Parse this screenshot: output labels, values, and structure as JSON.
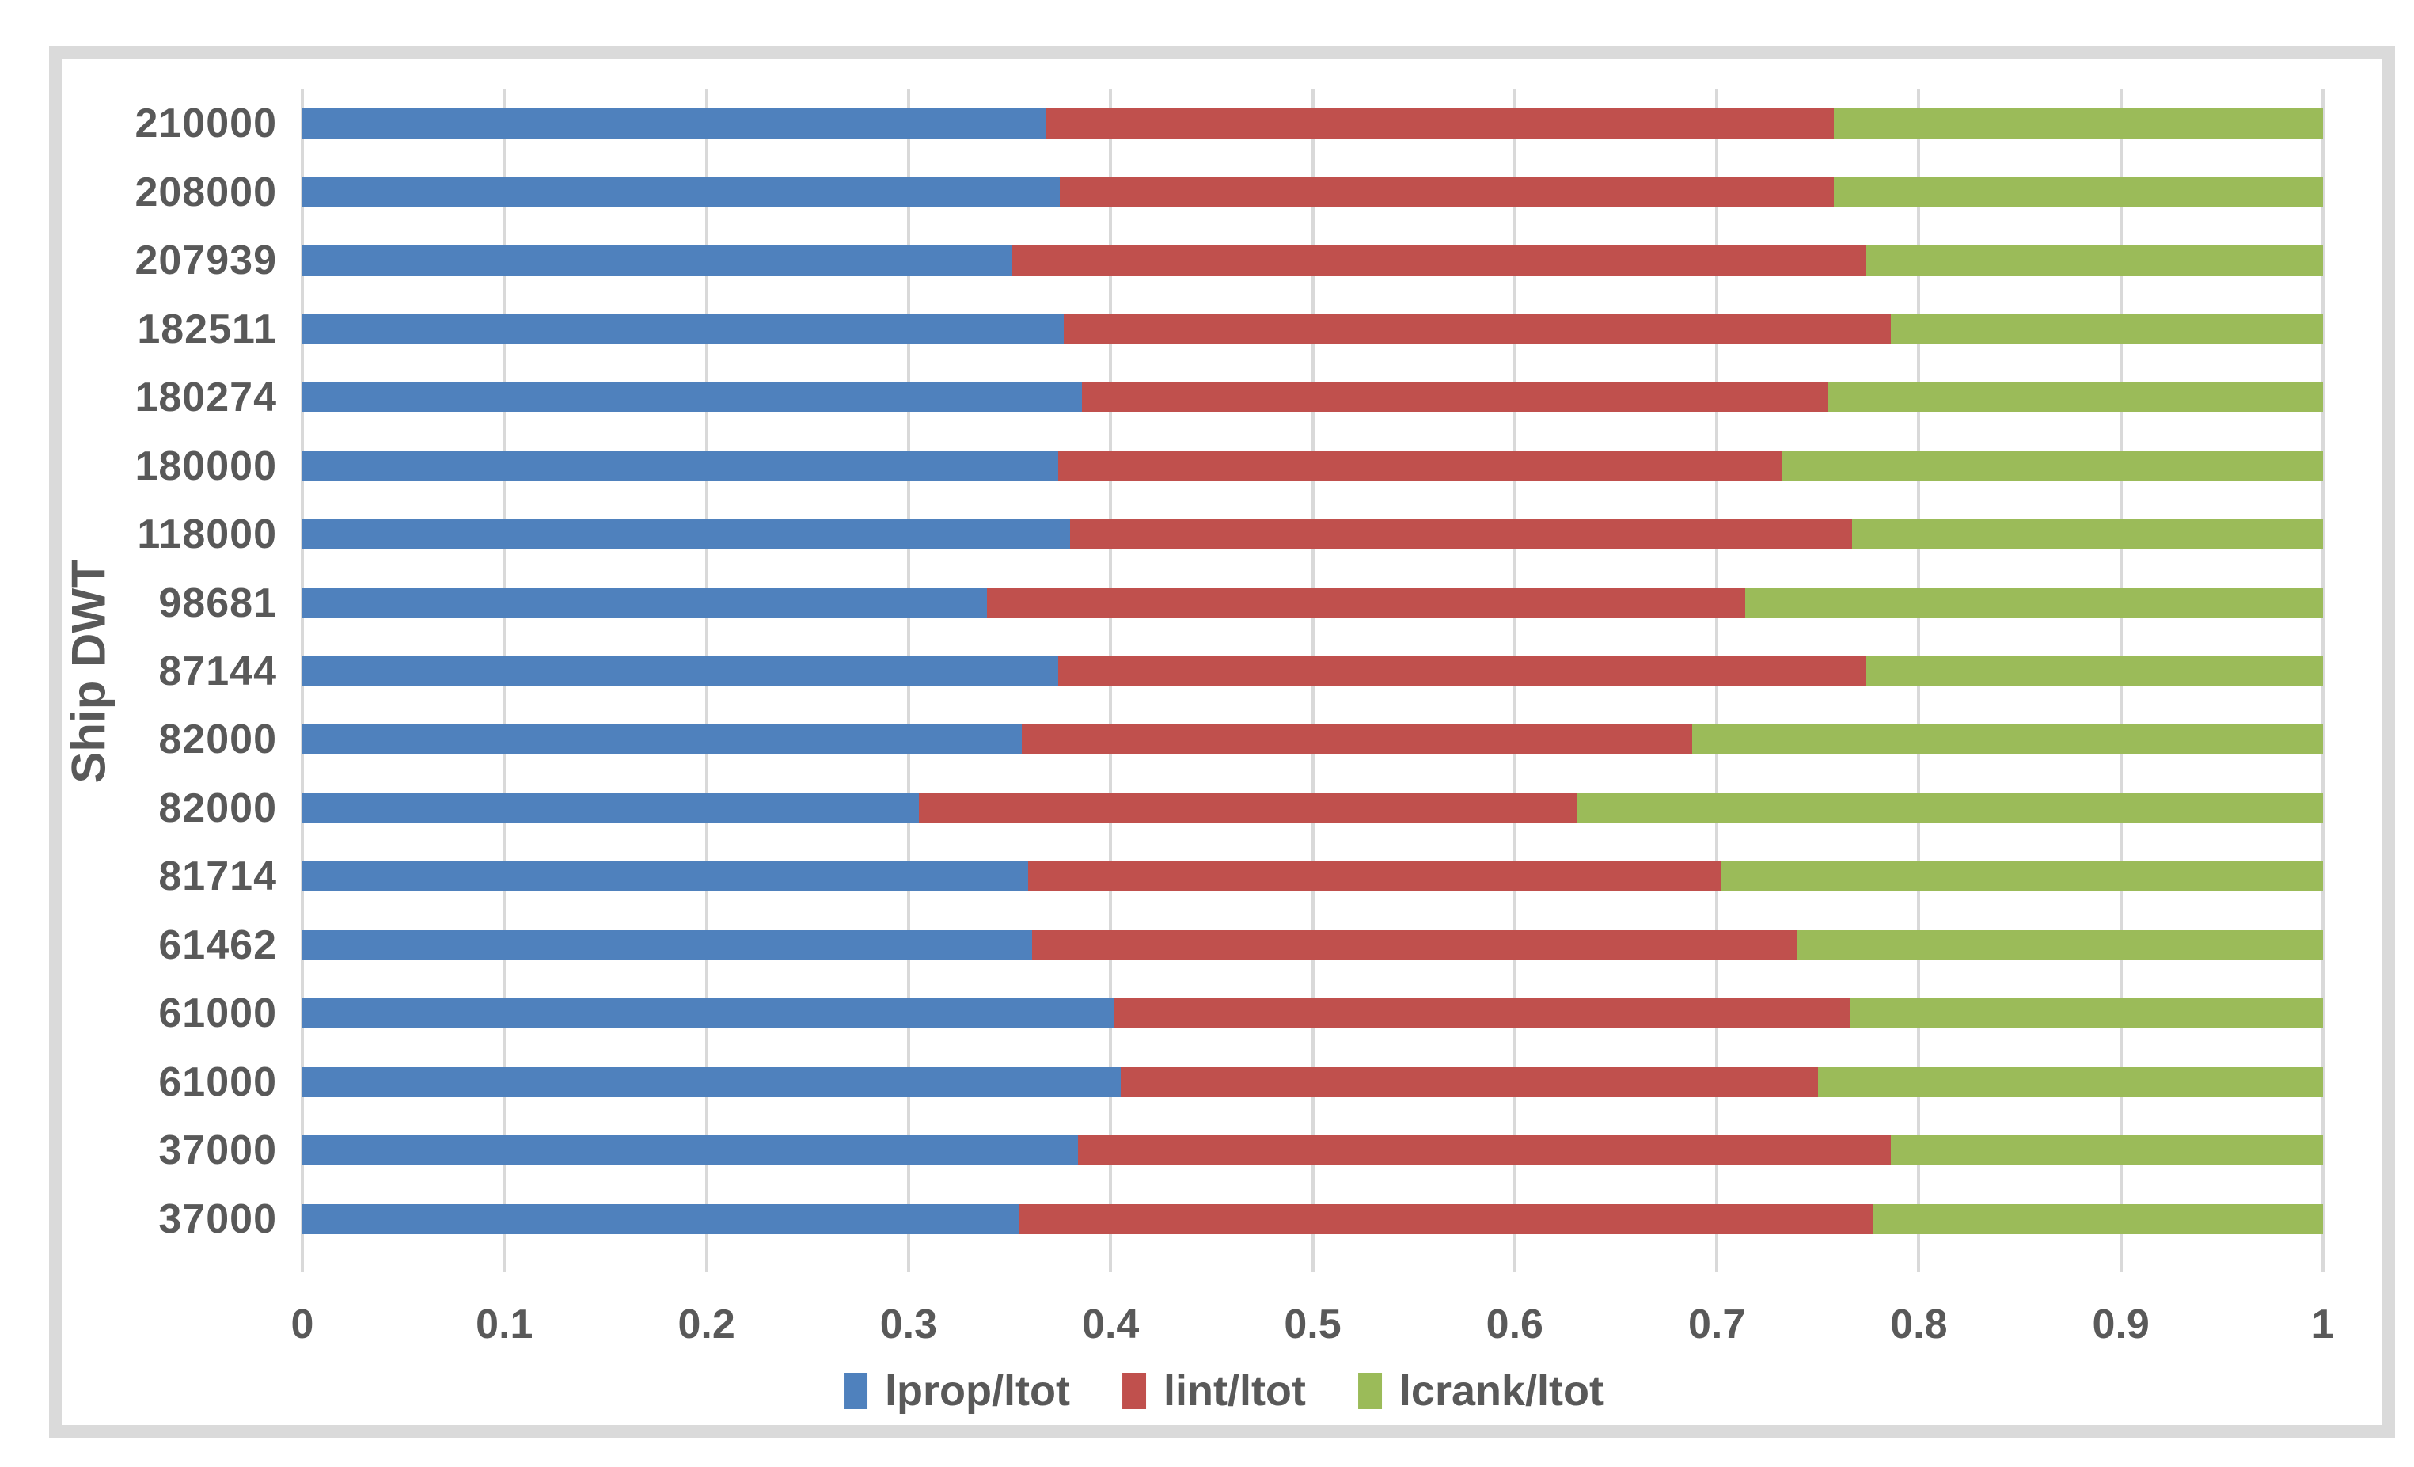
{
  "chart_data": {
    "type": "bar",
    "orientation": "horizontal",
    "stacked": true,
    "title": "",
    "xlabel": "",
    "ylabel": "Ship DWT",
    "xlim": [
      0,
      1
    ],
    "x_tick_labels": [
      "0",
      "0.1",
      "0.2",
      "0.3",
      "0.4",
      "0.5",
      "0.6",
      "0.7",
      "0.8",
      "0.9",
      "1"
    ],
    "grid": "vertical",
    "legend_position": "bottom",
    "categories": [
      "210000",
      "208000",
      "207939",
      "182511",
      "180274",
      "180000",
      "118000",
      "98681",
      "87144",
      "82000",
      "82000",
      "81714",
      "61462",
      "61000",
      "61000",
      "37000",
      "37000"
    ],
    "series": [
      {
        "name": "lprop/ltot",
        "color": "#4f81bd",
        "values": [
          0.368,
          0.375,
          0.351,
          0.377,
          0.386,
          0.374,
          0.38,
          0.339,
          0.374,
          0.356,
          0.305,
          0.359,
          0.361,
          0.402,
          0.405,
          0.384,
          0.355
        ]
      },
      {
        "name": "lint/ltot",
        "color": "#c0504d",
        "values": [
          0.39,
          0.383,
          0.423,
          0.409,
          0.369,
          0.358,
          0.387,
          0.375,
          0.4,
          0.332,
          0.326,
          0.343,
          0.379,
          0.364,
          0.345,
          0.402,
          0.422
        ]
      },
      {
        "name": "lcrank/ltot",
        "color": "#9bbb59",
        "values": [
          0.242,
          0.242,
          0.226,
          0.214,
          0.245,
          0.268,
          0.233,
          0.286,
          0.226,
          0.312,
          0.369,
          0.298,
          0.26,
          0.234,
          0.25,
          0.214,
          0.223
        ]
      }
    ]
  },
  "style": {
    "gridline_color": "#d9d9d9",
    "frame_color": "#dadada",
    "text_color": "#595959"
  }
}
